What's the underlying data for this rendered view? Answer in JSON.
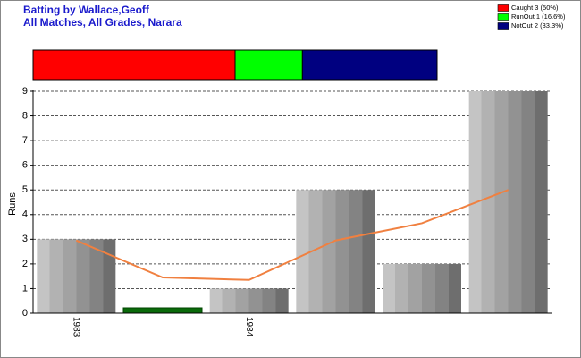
{
  "chart_data": [
    {
      "type": "bar",
      "title": "Batting by Wallace,Geoff",
      "subtitle": "All Matches, All Grades, Narara",
      "ylabel": "Runs",
      "categories": [
        "1983",
        null,
        "1984",
        null,
        null,
        null
      ],
      "series": [
        {
          "type": "bar",
          "colors": [
            "#a0a0a0",
            "#0a6a0a",
            "#a0a0a0",
            "#a0a0a0",
            "#a0a0a0",
            "#a0a0a0"
          ],
          "values": [
            3,
            0,
            1,
            5,
            2,
            9
          ]
        },
        {
          "type": "line",
          "color": "#f08040",
          "values": [
            2.95,
            1.45,
            1.35,
            2.95,
            3.65,
            5
          ]
        }
      ],
      "ylim": [
        0,
        9
      ],
      "yticks": [
        0,
        1,
        2,
        3,
        4,
        5,
        6,
        7,
        8,
        9
      ],
      "grid": true
    },
    {
      "type": "stacked-bar",
      "legend": "top-right",
      "series": [
        {
          "name": "Caught 3 (50%)",
          "color": "#ff0000",
          "values": [
            3
          ]
        },
        {
          "name": "RunOut 1 (16.6%)",
          "color": "#00ff00",
          "values": [
            1
          ]
        },
        {
          "name": "NotOut 2 (33.3%)",
          "color": "#000080",
          "values": [
            2
          ]
        }
      ]
    }
  ]
}
